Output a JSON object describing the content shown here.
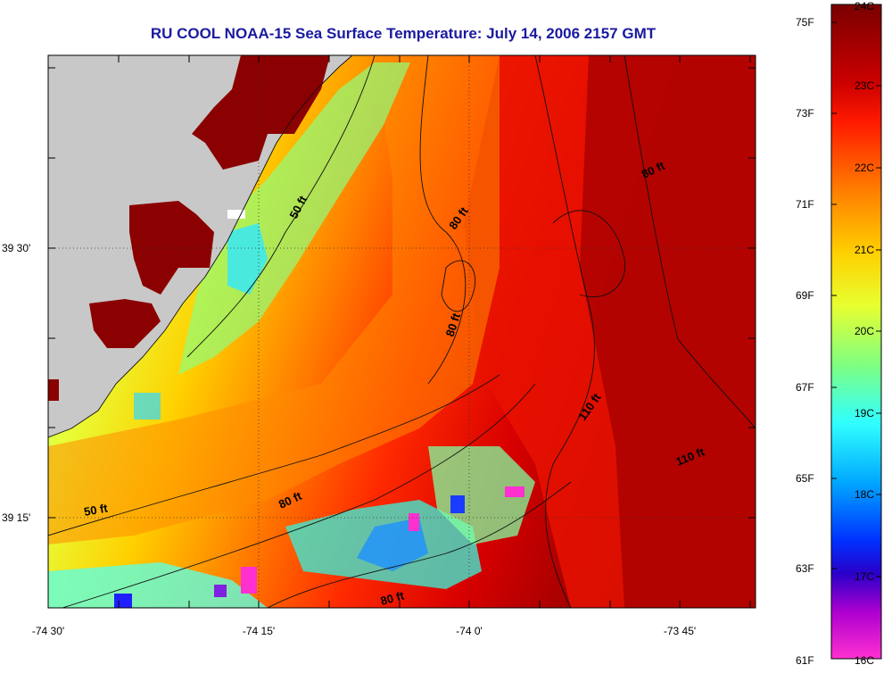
{
  "title": "RU COOL  NOAA-15  Sea Surface Temperature:  July 14, 2006 2157 GMT",
  "lat_labels": [
    "39 30'",
    "39 15'"
  ],
  "lon_labels": [
    "-74 30'",
    "-74 15'",
    "-74 0'",
    "-73 45'"
  ],
  "contour_labels": [
    "50 ft",
    "80 ft",
    "80 ft",
    "80 ft",
    "110 ft",
    "110 ft",
    "50 ft",
    "80 ft",
    "80 ft"
  ],
  "colorbar": {
    "fahrenheit": [
      "75F",
      "73F",
      "71F",
      "69F",
      "67F",
      "65F",
      "63F",
      "61F"
    ],
    "celsius": [
      "24C",
      "23C",
      "22C",
      "21C",
      "20C",
      "19C",
      "18C",
      "17C",
      "16C"
    ]
  },
  "colors": {
    "land": "#c8c8c8",
    "hot": "#8b0000",
    "title": "#1a1aa0"
  }
}
